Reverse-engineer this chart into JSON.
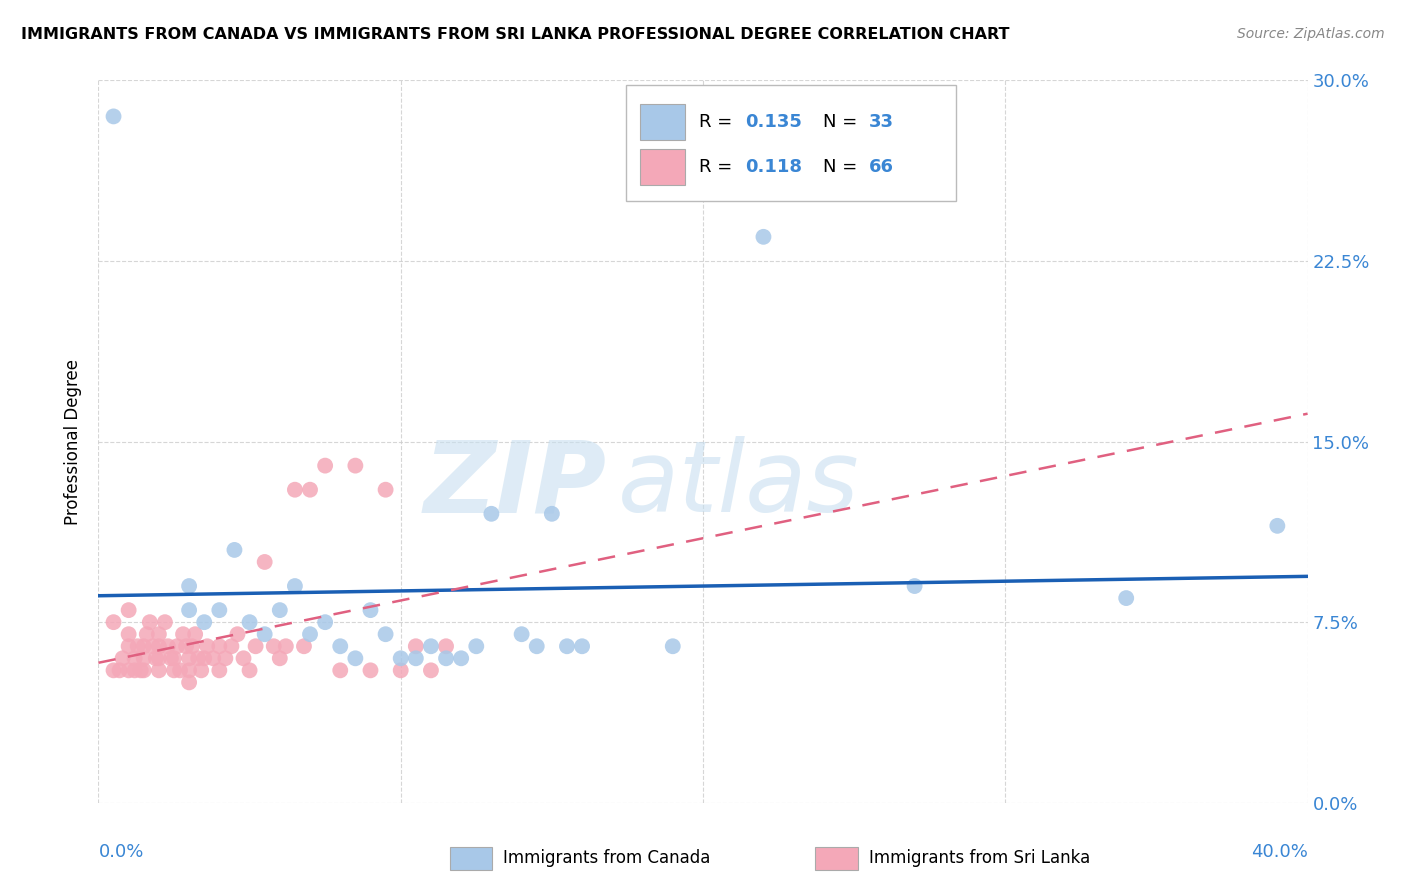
{
  "title": "IMMIGRANTS FROM CANADA VS IMMIGRANTS FROM SRI LANKA PROFESSIONAL DEGREE CORRELATION CHART",
  "source": "Source: ZipAtlas.com",
  "ylabel": "Professional Degree",
  "yticks": [
    "0.0%",
    "7.5%",
    "15.0%",
    "22.5%",
    "30.0%"
  ],
  "ytick_vals": [
    0.0,
    0.075,
    0.15,
    0.225,
    0.3
  ],
  "xlim": [
    0.0,
    0.4
  ],
  "ylim": [
    0.0,
    0.3
  ],
  "color_canada": "#a8c8e8",
  "color_srilanka": "#f4a8b8",
  "color_canada_line": "#1a5fb4",
  "color_srilanka_line": "#e06080",
  "color_axis_label": "#3a86d4",
  "watermark_zip": "ZIP",
  "watermark_atlas": "atlas",
  "canada_x": [
    0.005,
    0.22,
    0.03,
    0.03,
    0.035,
    0.04,
    0.045,
    0.05,
    0.055,
    0.06,
    0.065,
    0.07,
    0.075,
    0.08,
    0.085,
    0.09,
    0.095,
    0.1,
    0.105,
    0.11,
    0.115,
    0.12,
    0.125,
    0.13,
    0.14,
    0.145,
    0.15,
    0.155,
    0.16,
    0.19,
    0.27,
    0.34,
    0.39
  ],
  "canada_y": [
    0.285,
    0.235,
    0.09,
    0.08,
    0.075,
    0.08,
    0.105,
    0.075,
    0.07,
    0.08,
    0.09,
    0.07,
    0.075,
    0.065,
    0.06,
    0.08,
    0.07,
    0.06,
    0.06,
    0.065,
    0.06,
    0.06,
    0.065,
    0.12,
    0.07,
    0.065,
    0.12,
    0.065,
    0.065,
    0.065,
    0.09,
    0.085,
    0.115
  ],
  "srilanka_x": [
    0.005,
    0.005,
    0.007,
    0.008,
    0.01,
    0.01,
    0.01,
    0.01,
    0.012,
    0.012,
    0.013,
    0.014,
    0.015,
    0.015,
    0.015,
    0.016,
    0.017,
    0.018,
    0.019,
    0.02,
    0.02,
    0.02,
    0.02,
    0.022,
    0.023,
    0.024,
    0.025,
    0.025,
    0.026,
    0.027,
    0.028,
    0.029,
    0.03,
    0.03,
    0.03,
    0.031,
    0.032,
    0.033,
    0.034,
    0.035,
    0.036,
    0.038,
    0.04,
    0.04,
    0.042,
    0.044,
    0.046,
    0.048,
    0.05,
    0.052,
    0.055,
    0.058,
    0.06,
    0.062,
    0.065,
    0.068,
    0.07,
    0.075,
    0.08,
    0.085,
    0.09,
    0.095,
    0.1,
    0.105,
    0.11,
    0.115
  ],
  "srilanka_y": [
    0.055,
    0.075,
    0.055,
    0.06,
    0.055,
    0.065,
    0.07,
    0.08,
    0.055,
    0.06,
    0.065,
    0.055,
    0.055,
    0.06,
    0.065,
    0.07,
    0.075,
    0.065,
    0.06,
    0.055,
    0.06,
    0.065,
    0.07,
    0.075,
    0.065,
    0.06,
    0.055,
    0.06,
    0.065,
    0.055,
    0.07,
    0.065,
    0.05,
    0.055,
    0.06,
    0.065,
    0.07,
    0.06,
    0.055,
    0.06,
    0.065,
    0.06,
    0.055,
    0.065,
    0.06,
    0.065,
    0.07,
    0.06,
    0.055,
    0.065,
    0.1,
    0.065,
    0.06,
    0.065,
    0.13,
    0.065,
    0.13,
    0.14,
    0.055,
    0.14,
    0.055,
    0.13,
    0.055,
    0.065,
    0.055,
    0.065
  ],
  "canada_R": "0.135",
  "canada_N": "33",
  "srilanka_R": "0.118",
  "srilanka_N": "66",
  "legend_label_canada": "Immigrants from Canada",
  "legend_label_srilanka": "Immigrants from Sri Lanka"
}
